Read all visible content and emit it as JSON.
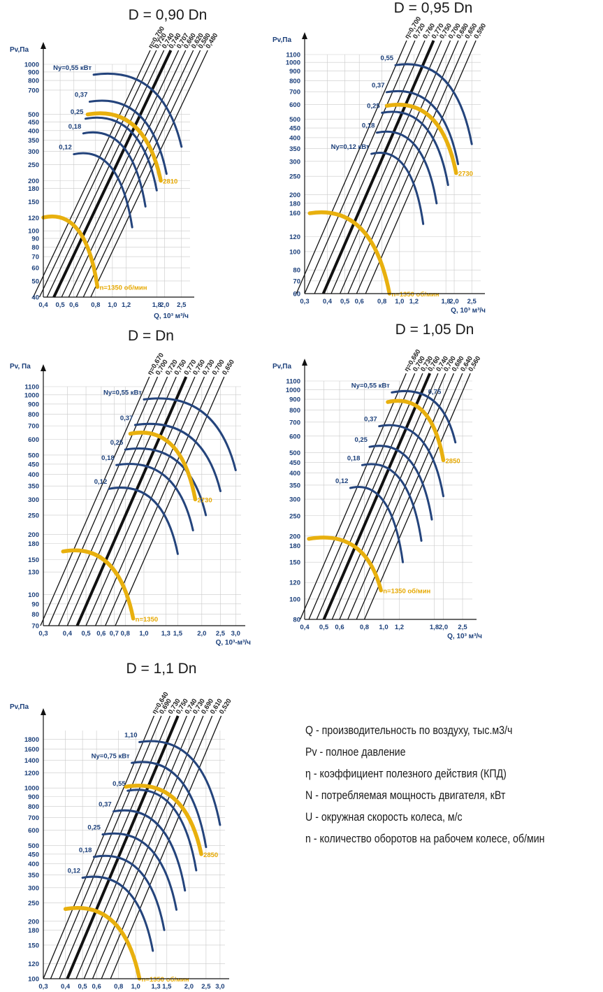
{
  "legend": [
    "Q - производительность по воздуху, тыс.м3/ч",
    "Pv - полное давление",
    "η - коэффициент полезного действия (КПД)",
    "N - потребляемая мощность двигателя, кВт",
    "U - окружная скорость колеса, м/с",
    "n - количество оборотов на рабочем колесе, об/мин"
  ],
  "colors": {
    "power_curves": "#24447c",
    "rpm_curves": "#e8b00e",
    "efficiency_lines": "#111111",
    "grid": "#c9c9c9",
    "tick_text": "#1b3f7a"
  },
  "chart_data": [
    {
      "type": "line",
      "title": "D = 0,90 Dn",
      "ylabel": "Pv,Па",
      "xlabel": "Q, 10³ м³/ч",
      "x_scale": "log",
      "y_scale": "log",
      "xlim": [
        0.4,
        2.8
      ],
      "ylim": [
        40,
        1000
      ],
      "x_ticks": [
        "0,4",
        "0,5",
        "0,6",
        "0,8",
        "1,0",
        "1,2",
        "1,8",
        "2,0",
        "2,5"
      ],
      "y_ticks": [
        "1000",
        "900",
        "800",
        "700",
        "500",
        "450",
        "400",
        "350",
        "300",
        "250",
        "200",
        "180",
        "150",
        "120",
        "100",
        "90",
        "80",
        "70",
        "60",
        "50",
        "40"
      ],
      "efficiency_labels": [
        "η=0,700",
        "0,720",
        "0,740",
        "0,740",
        "0,707",
        "0,660",
        "0,620",
        "0,580",
        "0,480"
      ],
      "bold_line": 3,
      "efficiency_lines_x_at_ymin": [
        0.35,
        0.38,
        0.42,
        0.46,
        0.51,
        0.56,
        0.62,
        0.68,
        0.75
      ],
      "power_curves": [
        {
          "label": "Ny=0,55 кВт",
          "x_start": 0.78,
          "y_peak": 900,
          "x_end": 2.5,
          "y_end": 320
        },
        {
          "label": "0,37",
          "x_start": 0.74,
          "y_peak": 620,
          "x_end": 2.05,
          "y_end": 220
        },
        {
          "label": "0,25",
          "x_start": 0.7,
          "y_peak": 490,
          "x_end": 1.8,
          "y_end": 175
        },
        {
          "label": "0,18",
          "x_start": 0.68,
          "y_peak": 400,
          "x_end": 1.55,
          "y_end": 140
        },
        {
          "label": "0,12",
          "x_start": 0.6,
          "y_peak": 300,
          "x_end": 1.3,
          "y_end": 105
        }
      ],
      "rpm_curves": [
        {
          "label": "2810",
          "x_start": 0.72,
          "y_peak": 520,
          "x_end": 1.9,
          "y_end": 200
        },
        {
          "label": "n=1350 об/мин",
          "x_start": 0.4,
          "y_peak": 125,
          "x_end": 0.82,
          "y_end": 46
        }
      ]
    },
    {
      "type": "line",
      "title": "D = 0,95 Dn",
      "ylabel": "Pv,Па",
      "xlabel": "Q, 10³ м³/ч",
      "x_scale": "log",
      "y_scale": "log",
      "xlim": [
        0.3,
        2.8
      ],
      "ylim": [
        60,
        1100
      ],
      "x_ticks": [
        "0,3",
        "0,4",
        "0,5",
        "0,6",
        "0,8",
        "1,0",
        "1,2",
        "1,8",
        "2,0",
        "2,5"
      ],
      "y_ticks": [
        "1100",
        "1000",
        "900",
        "800",
        "700",
        "600",
        "500",
        "450",
        "400",
        "350",
        "300",
        "250",
        "200",
        "180",
        "160",
        "120",
        "100",
        "80",
        "70",
        "60"
      ],
      "efficiency_labels": [
        "η=0,700",
        "0,720",
        "0,760",
        "0,770",
        "0,750",
        "0,700",
        "0,680",
        "0,650",
        "0,590"
      ],
      "bold_line": 3,
      "efficiency_lines_x_at_ymin": [
        0.27,
        0.3,
        0.34,
        0.38,
        0.42,
        0.47,
        0.52,
        0.58,
        0.65
      ],
      "power_curves": [
        {
          "label": "0,55",
          "x_start": 0.95,
          "y_peak": 1000,
          "x_end": 2.5,
          "y_end": 370
        },
        {
          "label": "0,37",
          "x_start": 0.85,
          "y_peak": 720,
          "x_end": 2.1,
          "y_end": 290
        },
        {
          "label": "0,25",
          "x_start": 0.8,
          "y_peak": 560,
          "x_end": 1.85,
          "y_end": 225
        },
        {
          "label": "0,18",
          "x_start": 0.75,
          "y_peak": 440,
          "x_end": 1.6,
          "y_end": 180
        },
        {
          "label": "Ny=0,12 кВт",
          "x_start": 0.7,
          "y_peak": 340,
          "x_end": 1.35,
          "y_end": 140
        }
      ],
      "rpm_curves": [
        {
          "label": "2730",
          "x_start": 0.85,
          "y_peak": 610,
          "x_end": 2.05,
          "y_end": 260
        },
        {
          "label": "n=1350 об/мин",
          "x_start": 0.32,
          "y_peak": 165,
          "x_end": 0.88,
          "y_end": 60
        }
      ]
    },
    {
      "type": "line",
      "title": "D = Dn",
      "ylabel": "Pv, Па",
      "xlabel": "Q, 10³-м³/ч",
      "x_scale": "log",
      "y_scale": "log",
      "xlim": [
        0.3,
        3.2
      ],
      "ylim": [
        70,
        1100
      ],
      "x_ticks": [
        "0,3",
        "0,4",
        "0,5",
        "0,6",
        "0,7",
        "0,8",
        "1,0",
        "1,3",
        "1,5",
        "2,0",
        "2,5",
        "3,0"
      ],
      "y_ticks": [
        "1100",
        "1000",
        "900",
        "800",
        "700",
        "600",
        "500",
        "450",
        "400",
        "350",
        "300",
        "250",
        "200",
        "180",
        "150",
        "130",
        "100",
        "90",
        "80",
        "70"
      ],
      "efficiency_labels": [
        "η=0,670",
        "0,700",
        "0,720",
        "0,750",
        "0,770",
        "0,750",
        "0,730",
        "0,700",
        "0,650"
      ],
      "bold_line": 4,
      "efficiency_lines_x_at_ymin": [
        0.29,
        0.32,
        0.36,
        0.4,
        0.45,
        0.5,
        0.56,
        0.63,
        0.71
      ],
      "power_curves": [
        {
          "label": "Ny=0,55 кВт",
          "x_start": 1.0,
          "y_peak": 980,
          "x_end": 3.0,
          "y_end": 420
        },
        {
          "label": "0,37",
          "x_start": 0.9,
          "y_peak": 730,
          "x_end": 2.5,
          "y_end": 330
        },
        {
          "label": "0,25",
          "x_start": 0.8,
          "y_peak": 550,
          "x_end": 2.1,
          "y_end": 250
        },
        {
          "label": "0,18",
          "x_start": 0.72,
          "y_peak": 460,
          "x_end": 1.8,
          "y_end": 210
        },
        {
          "label": "0,12",
          "x_start": 0.66,
          "y_peak": 350,
          "x_end": 1.5,
          "y_end": 160
        }
      ],
      "rpm_curves": [
        {
          "label": "2730",
          "x_start": 0.85,
          "y_peak": 660,
          "x_end": 1.85,
          "y_end": 300
        },
        {
          "label": "n=1350",
          "x_start": 0.38,
          "y_peak": 170,
          "x_end": 0.88,
          "y_end": 76
        }
      ]
    },
    {
      "type": "line",
      "title": "D = 1,05 Dn",
      "ylabel": "Pv,Па",
      "xlabel": "Q, 10³ м³/ч",
      "x_scale": "log",
      "y_scale": "log",
      "xlim": [
        0.4,
        2.8
      ],
      "ylim": [
        80,
        1100
      ],
      "x_ticks": [
        "0,4",
        "0,5",
        "0,6",
        "0,8",
        "1,0",
        "1,2",
        "1,8",
        "2,0",
        "2,5"
      ],
      "y_ticks": [
        "1100",
        "1000",
        "900",
        "800",
        "700",
        "600",
        "500",
        "450",
        "400",
        "350",
        "300",
        "250",
        "200",
        "180",
        "150",
        "120",
        "100",
        "80"
      ],
      "efficiency_labels": [
        "η=0,660",
        "0,700",
        "0,730",
        "0,760",
        "0,740",
        "0,700",
        "0,680",
        "0,640",
        "0,560"
      ],
      "bold_line": 3,
      "efficiency_lines_x_at_ymin": [
        0.38,
        0.42,
        0.46,
        0.5,
        0.55,
        0.6,
        0.66,
        0.73,
        0.8
      ],
      "power_curves": [
        {
          "label": "Ny=0,55 кВт",
          "x_start": 1.1,
          "y_peak": 1000,
          "x_end": 2.3,
          "y_end": 560
        },
        {
          "label": "0,37",
          "x_start": 0.95,
          "y_peak": 690,
          "x_end": 2.0,
          "y_end": 310
        },
        {
          "label": "0,25",
          "x_start": 0.85,
          "y_peak": 550,
          "x_end": 1.75,
          "y_end": 240
        },
        {
          "label": "0,18",
          "x_start": 0.78,
          "y_peak": 450,
          "x_end": 1.55,
          "y_end": 190
        },
        {
          "label": "0,12",
          "x_start": 0.68,
          "y_peak": 350,
          "x_end": 1.25,
          "y_end": 150
        }
      ],
      "rpm_curves": [
        {
          "label": "2850",
          "x_start": 1.05,
          "y_peak": 900,
          "x_end": 2.0,
          "y_end": 460
        },
        {
          "label": "n=1350 об/мин",
          "x_start": 0.42,
          "y_peak": 200,
          "x_end": 0.97,
          "y_end": 110
        }
      ],
      "extra_labels": [
        "0,75"
      ]
    },
    {
      "type": "line",
      "title": "D = 1,1 Dn",
      "ylabel": "Pv,Па",
      "xlabel": "Q, 10³ м³/ч",
      "x_scale": "log",
      "y_scale": "log",
      "xlim": [
        0.3,
        3.2
      ],
      "ylim": [
        100,
        2000
      ],
      "x_ticks": [
        "0,3",
        "0,4",
        "0,5",
        "0,6",
        "0,8",
        "1,0",
        "1,3",
        "1,5",
        "2,0",
        "2,5",
        "3,0"
      ],
      "y_ticks": [
        "1800",
        "1600",
        "1400",
        "1200",
        "1000",
        "900",
        "800",
        "700",
        "600",
        "500",
        "450",
        "400",
        "350",
        "300",
        "250",
        "200",
        "180",
        "150",
        "120",
        "100"
      ],
      "efficiency_labels": [
        "η=0,640",
        "0,690",
        "0,730",
        "0,750",
        "0,740",
        "0,730",
        "0,690",
        "0,610",
        "0,520"
      ],
      "bold_line": 3,
      "efficiency_lines_x_at_ymin": [
        0.3,
        0.33,
        0.37,
        0.41,
        0.46,
        0.51,
        0.57,
        0.64,
        0.72
      ],
      "power_curves": [
        {
          "label": "1,10",
          "x_start": 1.05,
          "y_peak": 1800,
          "x_end": 3.0,
          "y_end": 640
        },
        {
          "label": "Ny=0,75 кВт",
          "x_start": 0.95,
          "y_peak": 1400,
          "x_end": 2.5,
          "y_end": 490
        },
        {
          "label": "0,55",
          "x_start": 0.9,
          "y_peak": 1000,
          "x_end": 2.2,
          "y_end": 370
        },
        {
          "label": "0,37",
          "x_start": 0.75,
          "y_peak": 780,
          "x_end": 1.9,
          "y_end": 290
        },
        {
          "label": "0,25",
          "x_start": 0.65,
          "y_peak": 590,
          "x_end": 1.7,
          "y_end": 230
        },
        {
          "label": "0,18",
          "x_start": 0.58,
          "y_peak": 450,
          "x_end": 1.45,
          "y_end": 180
        },
        {
          "label": "0,12",
          "x_start": 0.5,
          "y_peak": 350,
          "x_end": 1.25,
          "y_end": 140
        }
      ],
      "rpm_curves": [
        {
          "label": "2850",
          "x_start": 0.88,
          "y_peak": 1050,
          "x_end": 2.35,
          "y_end": 450
        },
        {
          "label": "n=1350 об/мин",
          "x_start": 0.4,
          "y_peak": 240,
          "x_end": 1.05,
          "y_end": 100
        }
      ]
    }
  ]
}
